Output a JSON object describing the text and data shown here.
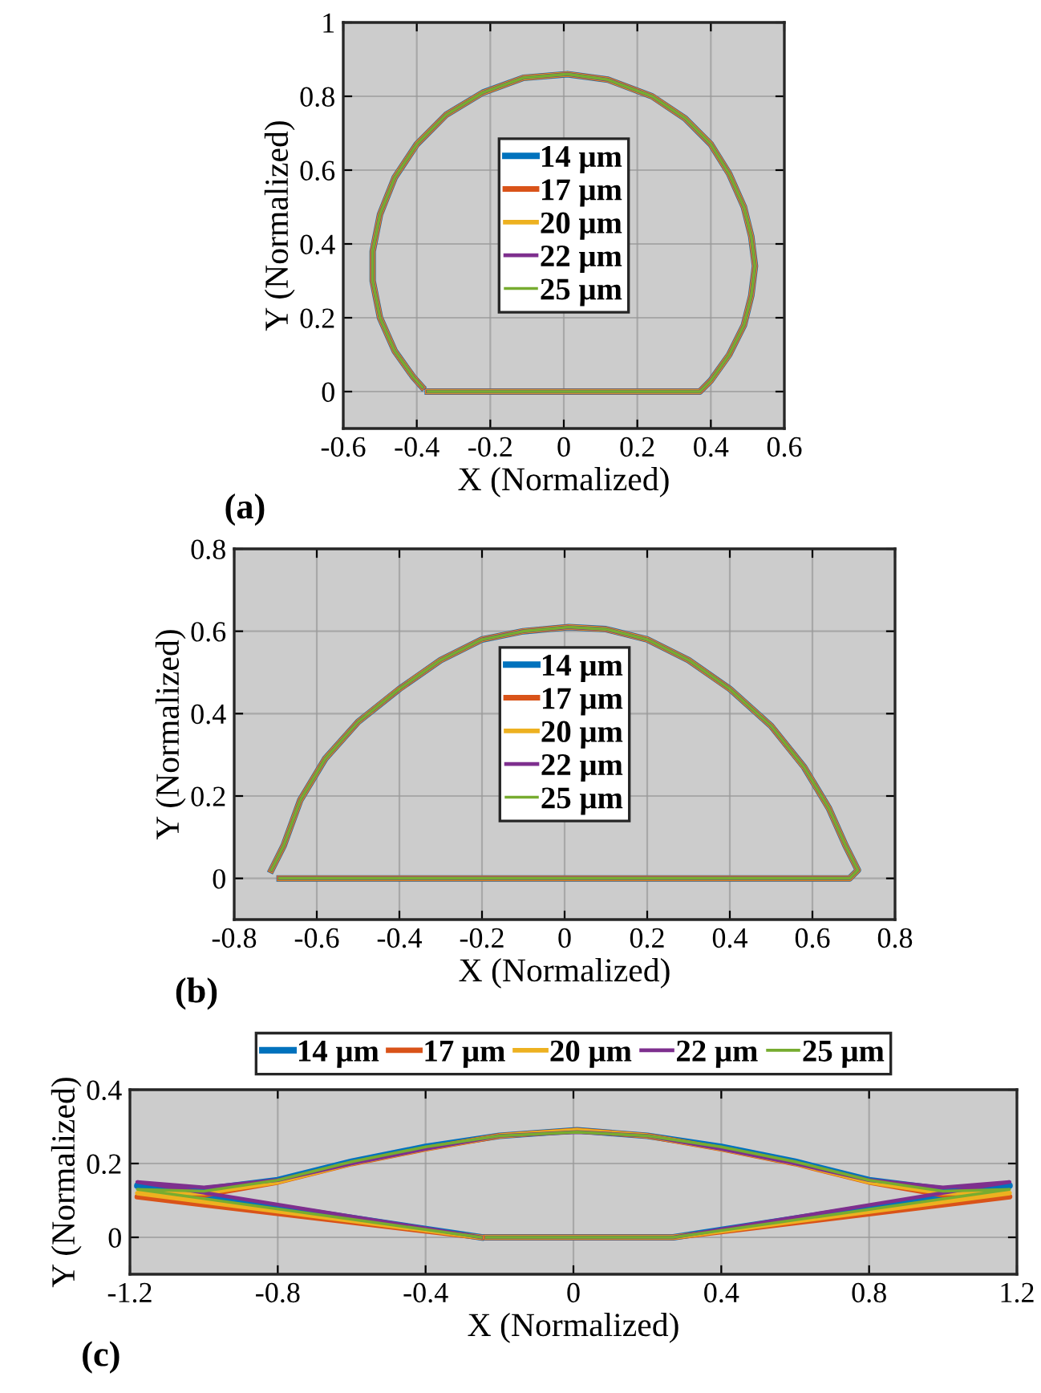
{
  "chart_data": [
    {
      "type": "line",
      "xlabel": "X (Normalized)",
      "ylabel": "Y (Normalized)",
      "annotations": [
        "(a)"
      ],
      "xlim": [
        -0.6,
        0.6
      ],
      "ylim": [
        -0.1,
        1
      ],
      "xticks": [
        -0.6,
        -0.4,
        -0.2,
        0,
        0.2,
        0.4,
        0.6
      ],
      "yticks": [
        0,
        0.2,
        0.4,
        0.6,
        0.8,
        1
      ],
      "grid": true,
      "legend": "center",
      "line_style": "solid",
      "series": [
        {
          "name": "14 μm",
          "color": "#0072bd",
          "x": [
            -0.37,
            0.37,
            0.4,
            0.45,
            0.49,
            0.51,
            0.52,
            0.51,
            0.49,
            0.45,
            0.4,
            0.33,
            0.24,
            0.12,
            0.01,
            -0.11,
            -0.22,
            -0.32,
            -0.4,
            -0.46,
            -0.5,
            -0.52,
            -0.52,
            -0.5,
            -0.46,
            -0.41,
            -0.385
          ],
          "values": [
            0,
            0,
            0.03,
            0.1,
            0.18,
            0.26,
            0.34,
            0.42,
            0.5,
            0.59,
            0.67,
            0.74,
            0.8,
            0.845,
            0.86,
            0.85,
            0.81,
            0.75,
            0.67,
            0.58,
            0.48,
            0.38,
            0.3,
            0.2,
            0.11,
            0.04,
            0.012
          ]
        },
        {
          "name": "17 μm",
          "color": "#d95319",
          "x": [
            -0.37,
            0.37,
            0.4,
            0.45,
            0.49,
            0.51,
            0.52,
            0.51,
            0.49,
            0.45,
            0.4,
            0.33,
            0.24,
            0.12,
            0.01,
            -0.11,
            -0.22,
            -0.32,
            -0.4,
            -0.46,
            -0.5,
            -0.52,
            -0.52,
            -0.5,
            -0.46,
            -0.41,
            -0.385
          ],
          "values": [
            0,
            0,
            0.03,
            0.1,
            0.18,
            0.26,
            0.34,
            0.42,
            0.5,
            0.59,
            0.67,
            0.74,
            0.8,
            0.845,
            0.86,
            0.85,
            0.81,
            0.75,
            0.67,
            0.58,
            0.48,
            0.38,
            0.3,
            0.2,
            0.11,
            0.04,
            0.012
          ]
        },
        {
          "name": "20 μm",
          "color": "#edb120",
          "x": [
            -0.37,
            0.37,
            0.4,
            0.45,
            0.49,
            0.51,
            0.52,
            0.51,
            0.49,
            0.45,
            0.4,
            0.33,
            0.24,
            0.12,
            0.01,
            -0.11,
            -0.22,
            -0.32,
            -0.4,
            -0.46,
            -0.5,
            -0.52,
            -0.52,
            -0.5,
            -0.46,
            -0.41,
            -0.385
          ],
          "values": [
            0,
            0,
            0.03,
            0.1,
            0.18,
            0.26,
            0.34,
            0.42,
            0.5,
            0.59,
            0.67,
            0.74,
            0.8,
            0.845,
            0.86,
            0.85,
            0.81,
            0.75,
            0.67,
            0.58,
            0.48,
            0.38,
            0.3,
            0.2,
            0.11,
            0.04,
            0.012
          ]
        },
        {
          "name": "22 μm",
          "color": "#7e2f8e",
          "x": [
            -0.37,
            0.37,
            0.4,
            0.45,
            0.49,
            0.51,
            0.52,
            0.51,
            0.49,
            0.45,
            0.4,
            0.33,
            0.24,
            0.12,
            0.01,
            -0.11,
            -0.22,
            -0.32,
            -0.4,
            -0.46,
            -0.5,
            -0.52,
            -0.52,
            -0.5,
            -0.46,
            -0.41,
            -0.385
          ],
          "values": [
            0,
            0,
            0.03,
            0.1,
            0.18,
            0.26,
            0.34,
            0.42,
            0.5,
            0.59,
            0.67,
            0.74,
            0.8,
            0.845,
            0.86,
            0.85,
            0.81,
            0.75,
            0.67,
            0.58,
            0.48,
            0.38,
            0.3,
            0.2,
            0.11,
            0.04,
            0.012
          ]
        },
        {
          "name": "25 μm",
          "color": "#77ac30",
          "x": [
            -0.37,
            0.37,
            0.4,
            0.45,
            0.49,
            0.51,
            0.52,
            0.51,
            0.49,
            0.45,
            0.4,
            0.33,
            0.24,
            0.12,
            0.01,
            -0.11,
            -0.22,
            -0.32,
            -0.4,
            -0.46,
            -0.5,
            -0.52,
            -0.52,
            -0.5,
            -0.46,
            -0.41,
            -0.385
          ],
          "values": [
            0,
            0,
            0.03,
            0.1,
            0.18,
            0.26,
            0.34,
            0.42,
            0.5,
            0.59,
            0.67,
            0.74,
            0.8,
            0.845,
            0.86,
            0.85,
            0.81,
            0.75,
            0.67,
            0.58,
            0.48,
            0.38,
            0.3,
            0.2,
            0.11,
            0.04,
            0.012
          ]
        }
      ]
    },
    {
      "type": "line",
      "xlabel": "X (Normalized)",
      "ylabel": "Y (Normalized)",
      "annotations": [
        "(b)"
      ],
      "xlim": [
        -0.8,
        0.8
      ],
      "ylim": [
        -0.1,
        0.8
      ],
      "xticks": [
        -0.8,
        -0.6,
        -0.4,
        -0.2,
        0,
        0.2,
        0.4,
        0.6,
        0.8
      ],
      "yticks": [
        0,
        0.2,
        0.4,
        0.6,
        0.8
      ],
      "grid": true,
      "legend": "center",
      "line_style": "solid",
      "series": [
        {
          "name": "14 μm",
          "color": "#0072bd",
          "x": [
            -0.69,
            0.69,
            0.71,
            0.68,
            0.64,
            0.58,
            0.5,
            0.4,
            0.3,
            0.2,
            0.1,
            0.01,
            -0.1,
            -0.2,
            -0.3,
            -0.4,
            -0.5,
            -0.58,
            -0.64,
            -0.68,
            -0.71
          ],
          "values": [
            0,
            0,
            0.02,
            0.08,
            0.17,
            0.27,
            0.37,
            0.46,
            0.53,
            0.58,
            0.605,
            0.61,
            0.6,
            0.58,
            0.53,
            0.46,
            0.38,
            0.29,
            0.19,
            0.08,
            0.02
          ]
        },
        {
          "name": "17 μm",
          "color": "#d95319",
          "x": [
            -0.69,
            0.69,
            0.71,
            0.68,
            0.64,
            0.58,
            0.5,
            0.4,
            0.3,
            0.2,
            0.1,
            0.01,
            -0.1,
            -0.2,
            -0.3,
            -0.4,
            -0.5,
            -0.58,
            -0.64,
            -0.68,
            -0.71
          ],
          "values": [
            0,
            0,
            0.02,
            0.08,
            0.17,
            0.27,
            0.37,
            0.46,
            0.53,
            0.58,
            0.605,
            0.61,
            0.6,
            0.58,
            0.53,
            0.46,
            0.38,
            0.29,
            0.19,
            0.08,
            0.02
          ]
        },
        {
          "name": "20 μm",
          "color": "#edb120",
          "x": [
            -0.69,
            0.69,
            0.71,
            0.68,
            0.64,
            0.58,
            0.5,
            0.4,
            0.3,
            0.2,
            0.1,
            0.01,
            -0.1,
            -0.2,
            -0.3,
            -0.4,
            -0.5,
            -0.58,
            -0.64,
            -0.68,
            -0.71
          ],
          "values": [
            0,
            0,
            0.02,
            0.08,
            0.17,
            0.27,
            0.37,
            0.46,
            0.53,
            0.58,
            0.605,
            0.61,
            0.6,
            0.58,
            0.53,
            0.46,
            0.38,
            0.29,
            0.19,
            0.08,
            0.02
          ]
        },
        {
          "name": "22 μm",
          "color": "#7e2f8e",
          "x": [
            -0.69,
            0.69,
            0.71,
            0.68,
            0.64,
            0.58,
            0.5,
            0.4,
            0.3,
            0.2,
            0.1,
            0.01,
            -0.1,
            -0.2,
            -0.3,
            -0.4,
            -0.5,
            -0.58,
            -0.64,
            -0.68,
            -0.71
          ],
          "values": [
            0,
            0,
            0.02,
            0.08,
            0.17,
            0.27,
            0.37,
            0.46,
            0.53,
            0.58,
            0.605,
            0.61,
            0.6,
            0.58,
            0.53,
            0.46,
            0.38,
            0.29,
            0.19,
            0.08,
            0.02
          ]
        },
        {
          "name": "25 μm",
          "color": "#77ac30",
          "x": [
            -0.69,
            0.69,
            0.71,
            0.68,
            0.64,
            0.58,
            0.5,
            0.4,
            0.3,
            0.2,
            0.1,
            0.01,
            -0.1,
            -0.2,
            -0.3,
            -0.4,
            -0.5,
            -0.58,
            -0.64,
            -0.68,
            -0.71
          ],
          "values": [
            0,
            0,
            0.02,
            0.08,
            0.17,
            0.27,
            0.37,
            0.46,
            0.53,
            0.58,
            0.605,
            0.61,
            0.6,
            0.58,
            0.53,
            0.46,
            0.38,
            0.29,
            0.19,
            0.08,
            0.02
          ]
        }
      ]
    },
    {
      "type": "line",
      "xlabel": "X (Normalized)",
      "ylabel": "Y (Normalized)",
      "annotations": [
        "(c)"
      ],
      "xlim": [
        -1.2,
        1.2
      ],
      "ylim": [
        -0.1,
        0.4
      ],
      "xticks": [
        -1.2,
        -0.8,
        -0.4,
        0,
        0.4,
        0.8,
        1.2
      ],
      "yticks": [
        0,
        0.2,
        0.4
      ],
      "grid": true,
      "legend": "top",
      "line_style": "solid",
      "series": [
        {
          "name": "14 μm",
          "color": "#0072bd",
          "x": [
            -0.25,
            -1.18,
            -1.0,
            -0.8,
            -0.6,
            -0.4,
            -0.2,
            0.01,
            0.2,
            0.4,
            0.6,
            0.8,
            1.0,
            1.18,
            0.27,
            -0.235
          ],
          "values": [
            0,
            0.14,
            0.13,
            0.155,
            0.205,
            0.245,
            0.275,
            0.29,
            0.275,
            0.245,
            0.205,
            0.155,
            0.13,
            0.14,
            0,
            0
          ]
        },
        {
          "name": "17 μm",
          "color": "#d95319",
          "x": [
            -0.25,
            -1.18,
            -1.0,
            -0.8,
            -0.6,
            -0.4,
            -0.2,
            0.01,
            0.2,
            0.4,
            0.6,
            0.8,
            1.0,
            1.18,
            0.27,
            -0.235
          ],
          "values": [
            0,
            0.11,
            0.115,
            0.15,
            0.2,
            0.24,
            0.275,
            0.29,
            0.275,
            0.24,
            0.2,
            0.15,
            0.115,
            0.11,
            0,
            0
          ]
        },
        {
          "name": "20 μm",
          "color": "#edb120",
          "x": [
            -0.25,
            -1.18,
            -1.0,
            -0.8,
            -0.6,
            -0.4,
            -0.2,
            0.01,
            0.2,
            0.4,
            0.6,
            0.8,
            1.0,
            1.18,
            0.27,
            -0.235
          ],
          "values": [
            0,
            0.12,
            0.12,
            0.15,
            0.2,
            0.24,
            0.275,
            0.29,
            0.275,
            0.24,
            0.2,
            0.15,
            0.12,
            0.12,
            0,
            0
          ]
        },
        {
          "name": "22 μm",
          "color": "#7e2f8e",
          "x": [
            -0.25,
            -1.18,
            -1.0,
            -0.8,
            -0.6,
            -0.4,
            -0.2,
            0.01,
            0.2,
            0.4,
            0.6,
            0.8,
            1.0,
            1.18,
            0.27,
            -0.235
          ],
          "values": [
            0,
            0.15,
            0.135,
            0.155,
            0.2,
            0.24,
            0.275,
            0.285,
            0.275,
            0.24,
            0.2,
            0.155,
            0.135,
            0.15,
            0,
            0
          ]
        },
        {
          "name": "25 μm",
          "color": "#77ac30",
          "x": [
            -0.25,
            -1.18,
            -1.0,
            -0.8,
            -0.6,
            -0.4,
            -0.2,
            0.01,
            0.2,
            0.4,
            0.6,
            0.8,
            1.0,
            1.18,
            0.27,
            -0.235
          ],
          "values": [
            0,
            0.13,
            0.125,
            0.155,
            0.205,
            0.245,
            0.275,
            0.285,
            0.275,
            0.245,
            0.205,
            0.155,
            0.125,
            0.13,
            0,
            0
          ]
        }
      ]
    }
  ]
}
